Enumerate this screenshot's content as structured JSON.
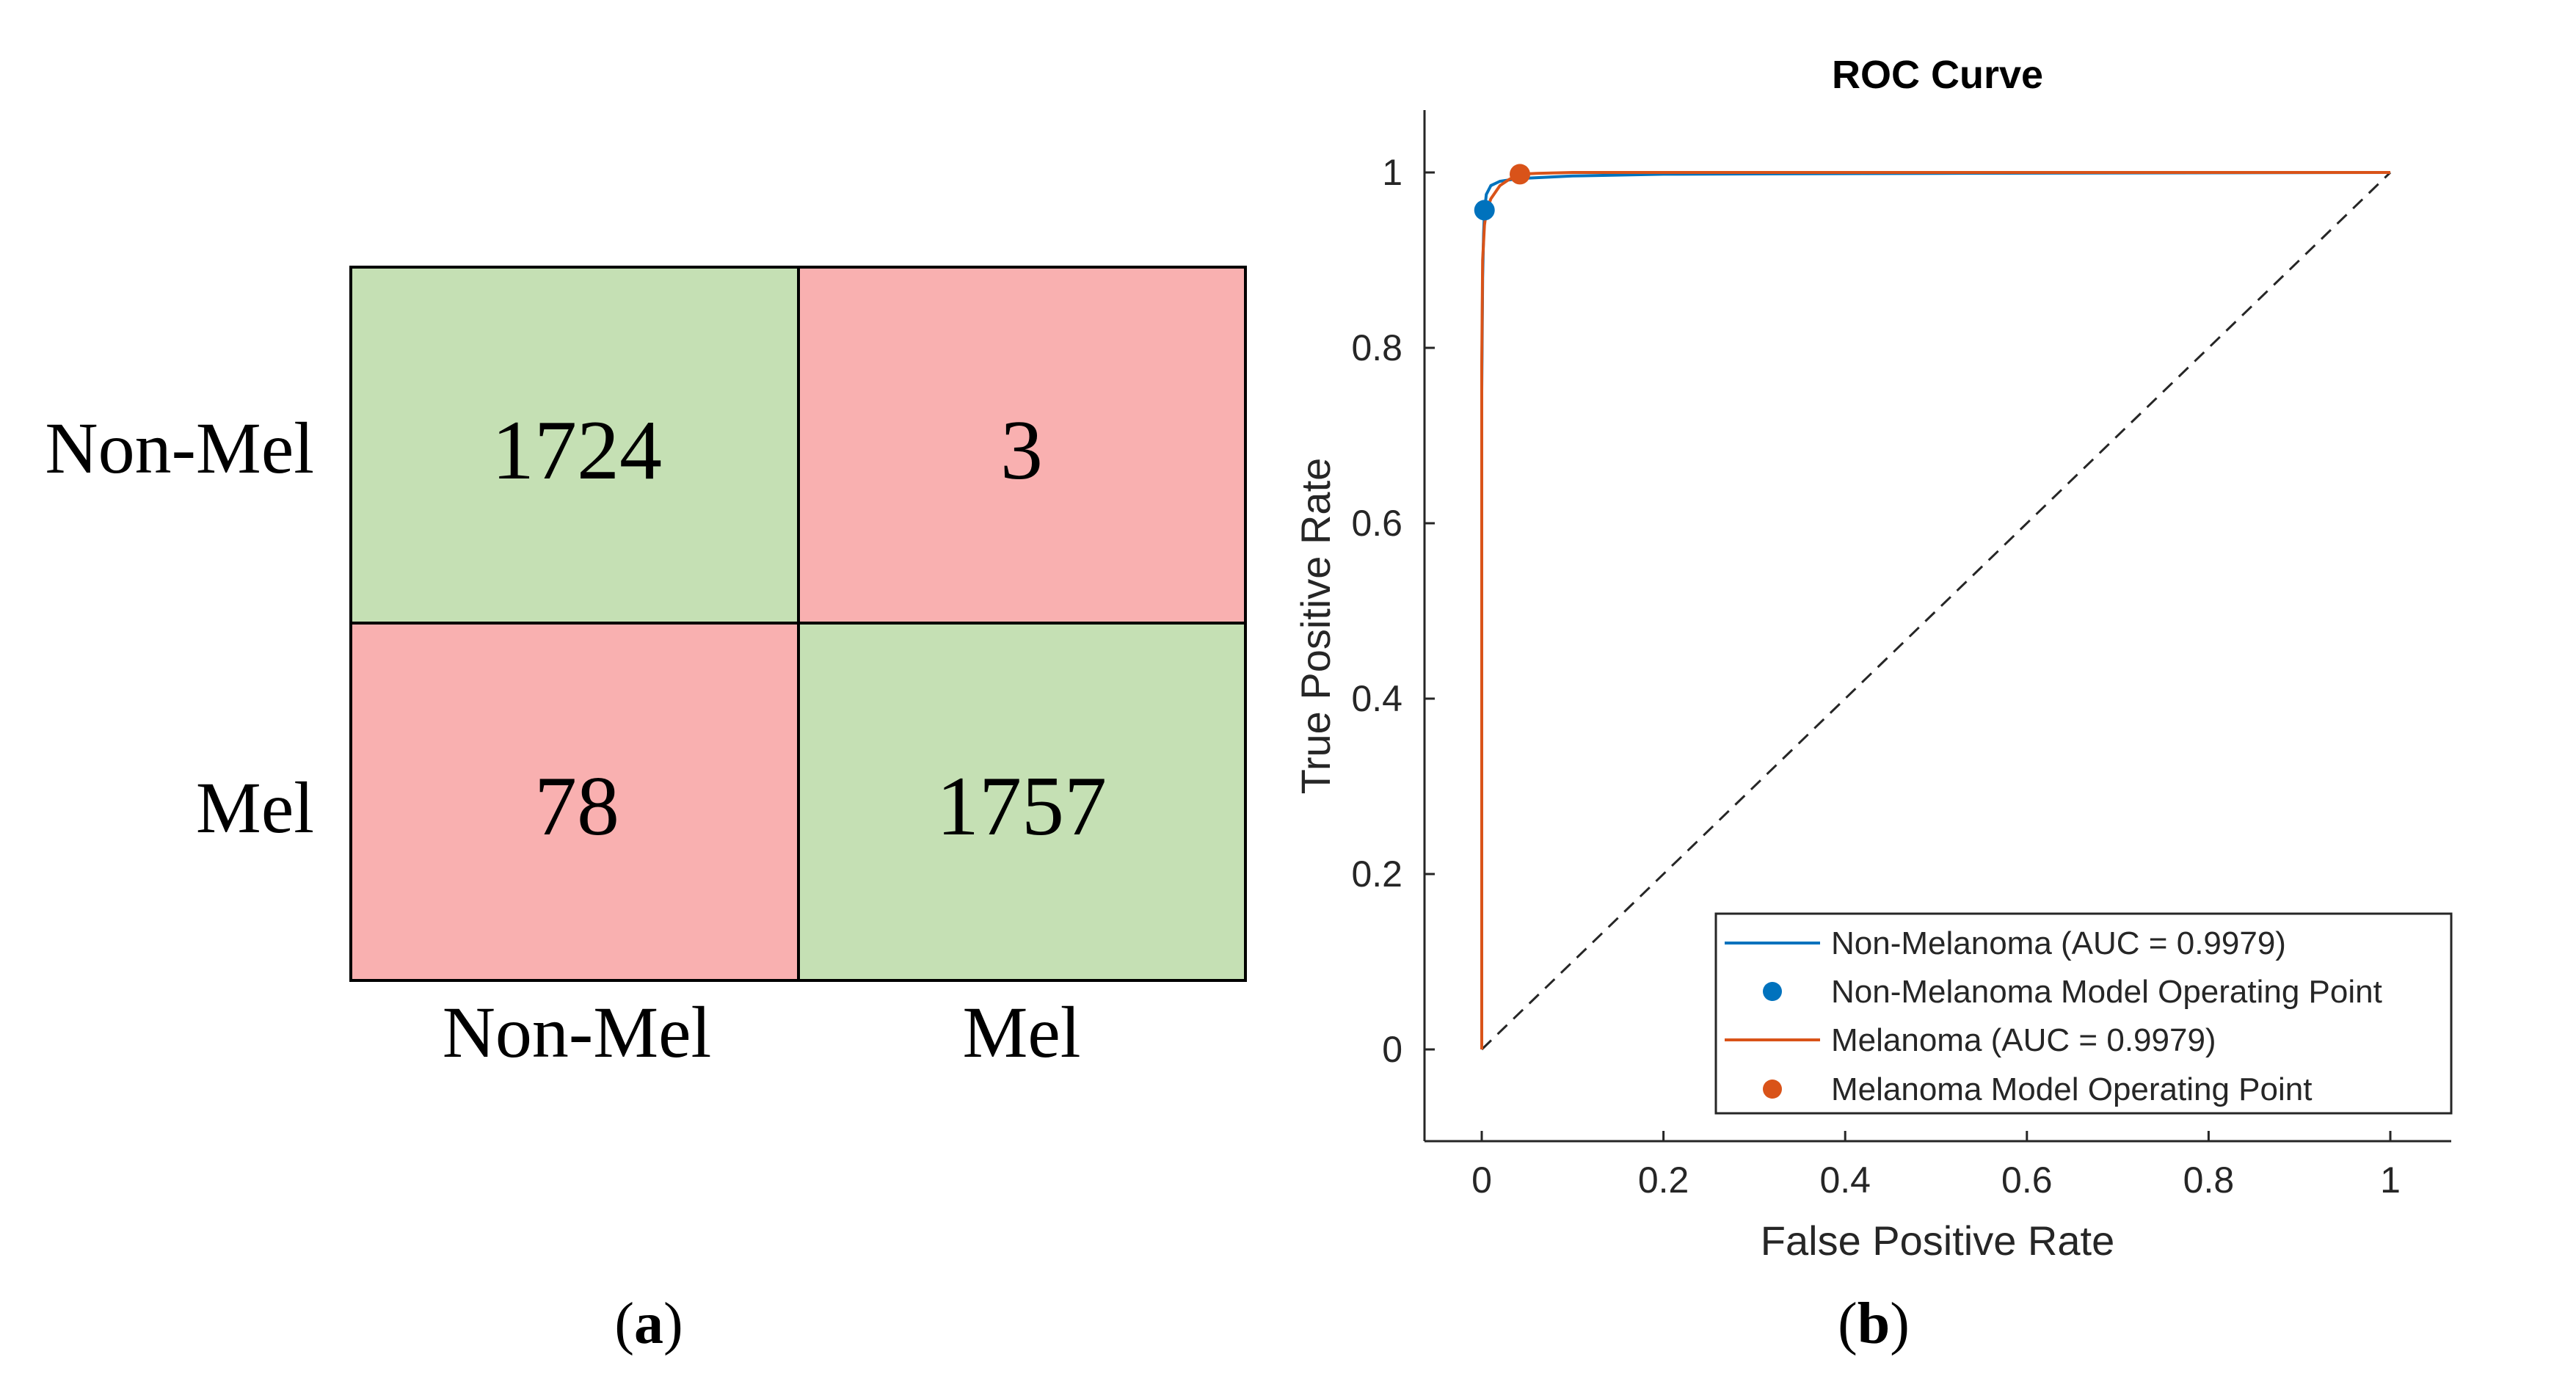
{
  "panel_a": {
    "caption_open": "(",
    "caption_letter": "a",
    "caption_close": ")",
    "row_labels": [
      "Non-Mel",
      "Mel"
    ],
    "col_labels": [
      "Non-Mel",
      "Mel"
    ],
    "cells": [
      [
        "1724",
        "3"
      ],
      [
        "78",
        "1757"
      ]
    ],
    "colors": {
      "correct": "#c5e0b4",
      "incorrect": "#f9b0b0",
      "border": "#000000"
    }
  },
  "panel_b": {
    "caption_open": "(",
    "caption_letter": "b",
    "caption_close": ")"
  },
  "chart_data": {
    "type": "line",
    "title": "ROC Curve",
    "xlabel": "False Positive Rate",
    "ylabel": "True Positive Rate",
    "xlim": [
      -0.07,
      1.07
    ],
    "ylim": [
      -0.1,
      1.07
    ],
    "x_ticks": [
      0,
      0.2,
      0.4,
      0.6,
      0.8,
      1
    ],
    "x_tick_labels": [
      "0",
      "0.2",
      "0.4",
      "0.6",
      "0.8",
      "1"
    ],
    "y_ticks": [
      0,
      0.2,
      0.4,
      0.6,
      0.8,
      1
    ],
    "y_tick_labels": [
      "0",
      "0.2",
      "0.4",
      "0.6",
      "0.8",
      "1"
    ],
    "series": [
      {
        "name": "Non-Melanoma (AUC = 0.9979)",
        "color": "#0072bd",
        "x": [
          0,
          0,
          0.001,
          0.002,
          0.003,
          0.005,
          0.01,
          0.02,
          0.04,
          0.1,
          0.2,
          0.5,
          1
        ],
        "y": [
          0,
          0.75,
          0.88,
          0.93,
          0.955,
          0.975,
          0.985,
          0.99,
          0.993,
          0.996,
          0.998,
          0.999,
          1
        ]
      },
      {
        "name": "Melanoma (AUC = 0.9979)",
        "color": "#d95319",
        "x": [
          0,
          0,
          0.001,
          0.003,
          0.005,
          0.01,
          0.02,
          0.03,
          0.042,
          0.06,
          0.1,
          0.3,
          1
        ],
        "y": [
          0,
          0.78,
          0.9,
          0.94,
          0.955,
          0.97,
          0.985,
          0.992,
          0.998,
          0.999,
          1,
          1,
          1
        ]
      }
    ],
    "reference_line": {
      "x": [
        0,
        1
      ],
      "y": [
        0,
        1
      ],
      "style": "dashed",
      "color": "#262626"
    },
    "operating_points": [
      {
        "name": "Non-Melanoma Model Operating Point",
        "x": 0.003,
        "y": 0.957,
        "color": "#0072bd"
      },
      {
        "name": "Melanoma Model Operating Point",
        "x": 0.042,
        "y": 0.998,
        "color": "#d95319"
      }
    ],
    "legend": {
      "position": "bottom-right",
      "entries": [
        {
          "label": "Non-Melanoma (AUC = 0.9979)",
          "kind": "line",
          "color": "#0072bd"
        },
        {
          "label": "Non-Melanoma Model Operating Point",
          "kind": "marker",
          "color": "#0072bd"
        },
        {
          "label": "Melanoma (AUC = 0.9979)",
          "kind": "line",
          "color": "#d95319"
        },
        {
          "label": "Melanoma Model Operating Point",
          "kind": "marker",
          "color": "#d95319"
        }
      ]
    }
  }
}
